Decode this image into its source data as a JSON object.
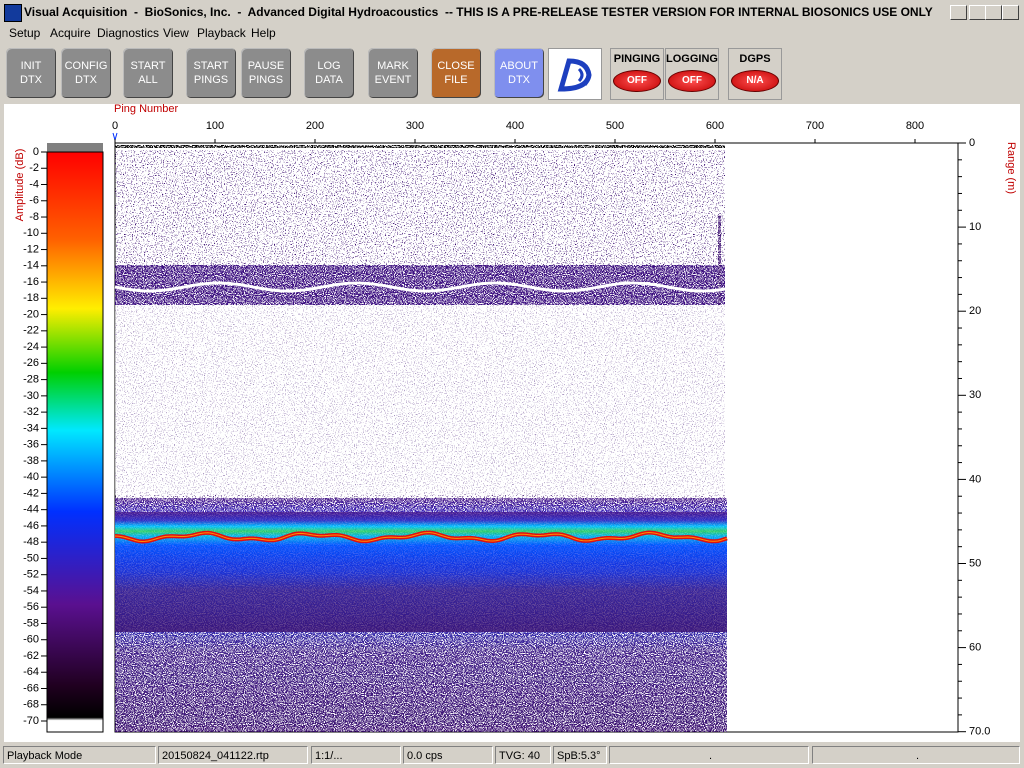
{
  "title_bar": {
    "title": "Visual Acquisition  -  BioSonics, Inc.  -  Advanced Digital Hydroacoustics  -- THIS IS A PRE-RELEASE TESTER VERSION FOR INTERNAL BIOSONICS USE ONLY"
  },
  "menu": [
    "Setup",
    "Acquire",
    "Diagnostics",
    "View",
    "Playback",
    "Help"
  ],
  "toolbar": {
    "buttons": [
      {
        "line1": "INIT",
        "line2": "DTX"
      },
      {
        "line1": "CONFIG",
        "line2": "DTX"
      },
      {
        "line1": "START",
        "line2": "ALL"
      },
      {
        "line1": "START",
        "line2": "PINGS"
      },
      {
        "line1": "PAUSE",
        "line2": "PINGS"
      },
      {
        "line1": "LOG",
        "line2": "DATA"
      },
      {
        "line1": "MARK",
        "line2": "EVENT"
      },
      {
        "line1": "CLOSE",
        "line2": "FILE"
      },
      {
        "line1": "ABOUT",
        "line2": "DTX"
      }
    ],
    "indicators": [
      {
        "label": "PINGING",
        "state": "OFF"
      },
      {
        "label": "LOGGING",
        "state": "OFF"
      },
      {
        "label": "DGPS",
        "state": "N/A"
      }
    ]
  },
  "echogram": {
    "x_axis_label": "Ping Number",
    "x_ticks": [
      "0",
      "100",
      "200",
      "300",
      "400",
      "500",
      "600",
      "700",
      "800"
    ],
    "range_label": "Range (m)",
    "range_ticks": [
      "0",
      "10",
      "20",
      "30",
      "40",
      "50",
      "60",
      "70.0"
    ],
    "amplitude_label": "Amplitude (dB)",
    "amplitude_ticks": [
      "0",
      "-2",
      "-4",
      "-6",
      "-8",
      "-10",
      "-12",
      "-14",
      "-16",
      "-18",
      "-20",
      "-22",
      "-24",
      "-26",
      "-28",
      "-30",
      "-32",
      "-34",
      "-36",
      "-38",
      "-40",
      "-42",
      "-44",
      "-46",
      "-48",
      "-50",
      "-52",
      "-54",
      "-56",
      "-58",
      "-60",
      "-62",
      "-64",
      "-66",
      "-68",
      "-70"
    ]
  },
  "status_bar": [
    "Playback Mode",
    "20150824_041122.rtp",
    "1:1/...",
    "0.0 cps",
    "TVG: 40",
    "SpB:5.3°",
    ".",
    "."
  ]
}
